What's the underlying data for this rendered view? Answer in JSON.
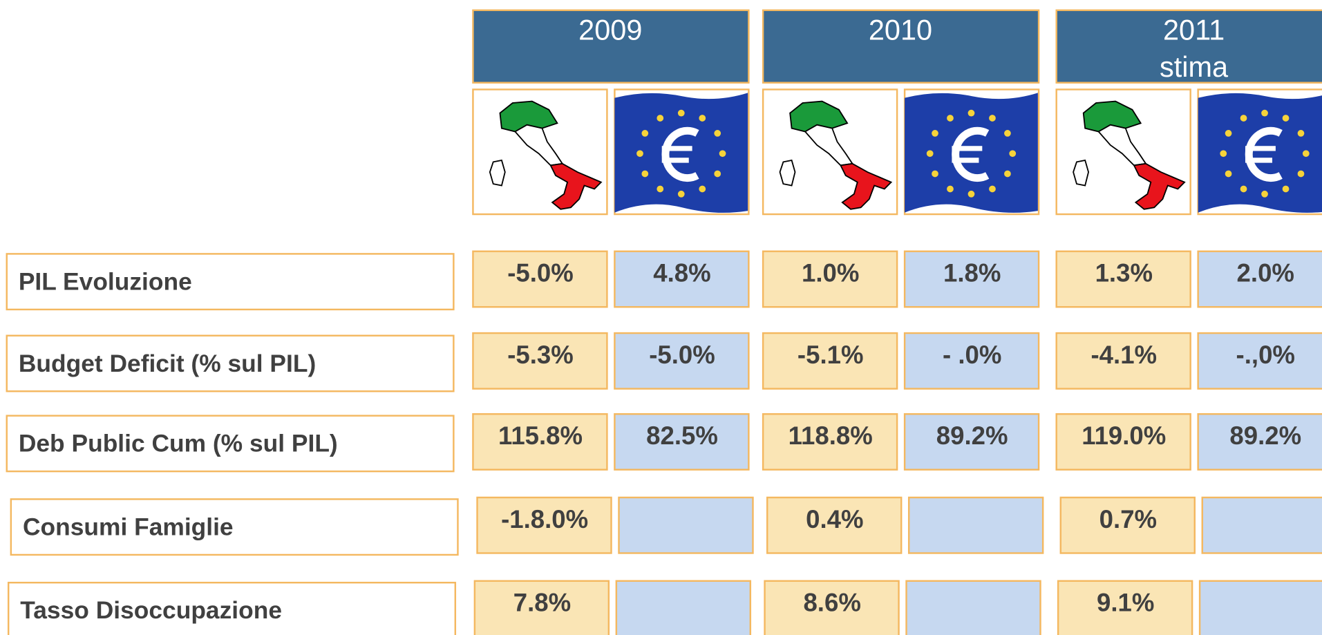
{
  "header": {
    "years": [
      {
        "year": "2009"
      },
      {
        "year": "2010"
      },
      {
        "year": "2011",
        "note": "stima"
      }
    ]
  },
  "table": {
    "rows": [
      {
        "label": "PIL Evoluzione",
        "values": [
          "-5.0%",
          "4.8%",
          "1.0%",
          "1.8%",
          "1.3%",
          "2.0%"
        ]
      },
      {
        "label": "Budget Deficit (% sul PIL)",
        "values": [
          "-5.3%",
          "-5.0%",
          "-5.1%",
          "- .0%",
          "-4.1%",
          "-.,0%"
        ]
      },
      {
        "label": "Deb Public Cum (% sul PIL)",
        "values": [
          "115.8%",
          "82.5%",
          "118.8%",
          "89.2%",
          "119.0%",
          "89.2%"
        ]
      },
      {
        "label": "Consumi Famiglie",
        "values": [
          "-1.8.0%",
          null,
          "0.4%",
          null,
          "0.7%",
          null
        ]
      },
      {
        "label": "Tasso Disoccupazione",
        "values": [
          "7.8%",
          null,
          "8.6%",
          null,
          "9.1%",
          null
        ]
      }
    ]
  }
}
